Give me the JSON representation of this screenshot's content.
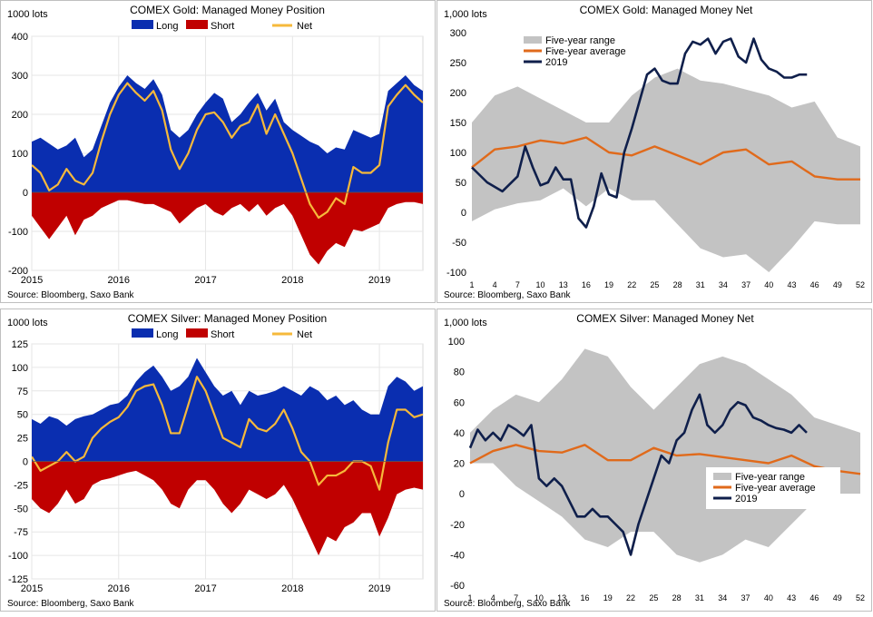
{
  "chart_data": [
    {
      "type": "area",
      "title": "COMEX Gold: Managed Money Position",
      "ylabel": "1000 lots",
      "source": "Source: Bloomberg, Saxo Bank",
      "ylim": [
        -200,
        400
      ],
      "yticks": [
        -200,
        -100,
        0,
        100,
        200,
        300,
        400
      ],
      "xlim": [
        2015.0,
        2019.5
      ],
      "xticks": [
        2015,
        2016,
        2017,
        2018,
        2019
      ],
      "grid": true,
      "legend_position": "top-center",
      "legend": [
        "Long",
        "Short",
        "Net"
      ],
      "colors": {
        "Long": "#0a2eb0",
        "Short": "#c00000",
        "Net": "#f6b93b"
      },
      "series": [
        {
          "name": "Long",
          "x": [
            2015.0,
            2015.1,
            2015.2,
            2015.3,
            2015.4,
            2015.5,
            2015.6,
            2015.7,
            2015.8,
            2015.9,
            2016.0,
            2016.1,
            2016.2,
            2016.3,
            2016.4,
            2016.5,
            2016.6,
            2016.7,
            2016.8,
            2016.9,
            2017.0,
            2017.1,
            2017.2,
            2017.3,
            2017.4,
            2017.5,
            2017.6,
            2017.7,
            2017.8,
            2017.9,
            2018.0,
            2018.1,
            2018.2,
            2018.3,
            2018.4,
            2018.5,
            2018.6,
            2018.7,
            2018.8,
            2018.9,
            2019.0,
            2019.1,
            2019.2,
            2019.3,
            2019.4,
            2019.5
          ],
          "values": [
            130,
            140,
            125,
            110,
            120,
            140,
            90,
            110,
            170,
            230,
            270,
            300,
            280,
            265,
            290,
            250,
            160,
            140,
            160,
            200,
            230,
            255,
            240,
            180,
            200,
            230,
            255,
            210,
            240,
            180,
            160,
            145,
            130,
            120,
            100,
            115,
            110,
            160,
            150,
            140,
            150,
            260,
            280,
            300,
            275,
            260
          ]
        },
        {
          "name": "Short",
          "x": [
            2015.0,
            2015.1,
            2015.2,
            2015.3,
            2015.4,
            2015.5,
            2015.6,
            2015.7,
            2015.8,
            2015.9,
            2016.0,
            2016.1,
            2016.2,
            2016.3,
            2016.4,
            2016.5,
            2016.6,
            2016.7,
            2016.8,
            2016.9,
            2017.0,
            2017.1,
            2017.2,
            2017.3,
            2017.4,
            2017.5,
            2017.6,
            2017.7,
            2017.8,
            2017.9,
            2018.0,
            2018.1,
            2018.2,
            2018.3,
            2018.4,
            2018.5,
            2018.6,
            2018.7,
            2018.8,
            2018.9,
            2019.0,
            2019.1,
            2019.2,
            2019.3,
            2019.4,
            2019.5
          ],
          "values": [
            -60,
            -90,
            -120,
            -90,
            -60,
            -110,
            -70,
            -60,
            -40,
            -30,
            -20,
            -20,
            -25,
            -30,
            -30,
            -40,
            -50,
            -80,
            -60,
            -40,
            -30,
            -50,
            -60,
            -40,
            -30,
            -50,
            -30,
            -60,
            -40,
            -30,
            -60,
            -110,
            -160,
            -185,
            -150,
            -130,
            -140,
            -95,
            -100,
            -90,
            -80,
            -40,
            -30,
            -25,
            -25,
            -30
          ]
        },
        {
          "name": "Net",
          "x": [
            2015.0,
            2015.1,
            2015.2,
            2015.3,
            2015.4,
            2015.5,
            2015.6,
            2015.7,
            2015.8,
            2015.9,
            2016.0,
            2016.1,
            2016.2,
            2016.3,
            2016.4,
            2016.5,
            2016.6,
            2016.7,
            2016.8,
            2016.9,
            2017.0,
            2017.1,
            2017.2,
            2017.3,
            2017.4,
            2017.5,
            2017.6,
            2017.7,
            2017.8,
            2017.9,
            2018.0,
            2018.1,
            2018.2,
            2018.3,
            2018.4,
            2018.5,
            2018.6,
            2018.7,
            2018.8,
            2018.9,
            2019.0,
            2019.1,
            2019.2,
            2019.3,
            2019.4,
            2019.5
          ],
          "values": [
            70,
            50,
            5,
            20,
            60,
            30,
            20,
            50,
            130,
            200,
            250,
            280,
            255,
            235,
            260,
            210,
            110,
            60,
            100,
            160,
            200,
            205,
            180,
            140,
            170,
            180,
            225,
            150,
            200,
            150,
            100,
            35,
            -30,
            -65,
            -50,
            -15,
            -30,
            65,
            50,
            50,
            70,
            220,
            250,
            275,
            250,
            230
          ]
        }
      ]
    },
    {
      "type": "line",
      "title": "COMEX Gold: Managed Money Net",
      "ylabel": "1,000 lots",
      "source": "Source: Bloomberg, Saxo Bank",
      "ylim": [
        -100,
        300
      ],
      "yticks": [
        -100,
        -50,
        0,
        50,
        100,
        150,
        200,
        250,
        300
      ],
      "xlim": [
        1,
        52
      ],
      "xticks": [
        1,
        4,
        7,
        10,
        13,
        16,
        19,
        22,
        25,
        28,
        31,
        34,
        37,
        40,
        43,
        46,
        49,
        52
      ],
      "grid": false,
      "legend_position": "top-left",
      "legend": [
        "Five-year range",
        "Five-year average",
        "2019"
      ],
      "colors": {
        "range": "#c3c3c3",
        "average": "#e06a1b",
        "y2019": "#0f1f4b"
      },
      "range": {
        "x": [
          1,
          4,
          7,
          10,
          13,
          16,
          19,
          22,
          25,
          28,
          31,
          34,
          37,
          40,
          43,
          46,
          49,
          52
        ],
        "upper": [
          150,
          195,
          210,
          190,
          170,
          150,
          150,
          195,
          225,
          240,
          220,
          215,
          205,
          195,
          175,
          185,
          125,
          110
        ],
        "lower": [
          -15,
          5,
          15,
          20,
          40,
          10,
          40,
          20,
          20,
          -20,
          -60,
          -75,
          -70,
          -100,
          -60,
          -15,
          -20,
          -20
        ]
      },
      "average": {
        "x": [
          1,
          4,
          7,
          10,
          13,
          16,
          19,
          22,
          25,
          28,
          31,
          34,
          37,
          40,
          43,
          46,
          49,
          52
        ],
        "values": [
          75,
          105,
          110,
          120,
          115,
          125,
          100,
          95,
          110,
          95,
          80,
          100,
          105,
          80,
          85,
          60,
          55,
          55
        ]
      },
      "y2019": {
        "x": [
          1,
          3,
          5,
          7,
          8,
          9,
          10,
          11,
          12,
          13,
          14,
          15,
          16,
          17,
          18,
          19,
          20,
          21,
          22,
          23,
          24,
          25,
          26,
          27,
          28,
          29,
          30,
          31,
          32,
          33,
          34,
          35,
          36,
          37,
          38,
          39,
          40,
          41,
          42,
          43,
          44,
          45
        ],
        "values": [
          75,
          50,
          35,
          60,
          110,
          75,
          45,
          50,
          75,
          55,
          55,
          -10,
          -25,
          10,
          65,
          30,
          25,
          100,
          140,
          185,
          230,
          240,
          220,
          215,
          215,
          265,
          285,
          280,
          290,
          265,
          285,
          290,
          260,
          250,
          290,
          255,
          240,
          235,
          225,
          225,
          230,
          230
        ]
      }
    },
    {
      "type": "area",
      "title": "COMEX Silver: Managed Money Position",
      "ylabel": "1000 lots",
      "source": "Source: Bloomberg, Saxo Bank",
      "ylim": [
        -125,
        125
      ],
      "yticks": [
        -125,
        -100,
        -75,
        -50,
        -25,
        0,
        25,
        50,
        75,
        100,
        125
      ],
      "xlim": [
        2015.0,
        2019.5
      ],
      "xticks": [
        2015,
        2016,
        2017,
        2018,
        2019
      ],
      "grid": true,
      "legend_position": "top-center",
      "legend": [
        "Long",
        "Short",
        "Net"
      ],
      "colors": {
        "Long": "#0a2eb0",
        "Short": "#c00000",
        "Net": "#f6b93b"
      },
      "series": [
        {
          "name": "Long",
          "x": [
            2015.0,
            2015.1,
            2015.2,
            2015.3,
            2015.4,
            2015.5,
            2015.6,
            2015.7,
            2015.8,
            2015.9,
            2016.0,
            2016.1,
            2016.2,
            2016.3,
            2016.4,
            2016.5,
            2016.6,
            2016.7,
            2016.8,
            2016.9,
            2017.0,
            2017.1,
            2017.2,
            2017.3,
            2017.4,
            2017.5,
            2017.6,
            2017.7,
            2017.8,
            2017.9,
            2018.0,
            2018.1,
            2018.2,
            2018.3,
            2018.4,
            2018.5,
            2018.6,
            2018.7,
            2018.8,
            2018.9,
            2019.0,
            2019.1,
            2019.2,
            2019.3,
            2019.4,
            2019.5
          ],
          "values": [
            45,
            40,
            48,
            45,
            38,
            45,
            48,
            50,
            55,
            60,
            62,
            70,
            85,
            95,
            102,
            90,
            75,
            80,
            90,
            110,
            95,
            80,
            70,
            75,
            60,
            75,
            70,
            72,
            75,
            80,
            75,
            70,
            80,
            75,
            65,
            70,
            60,
            65,
            55,
            50,
            50,
            80,
            90,
            85,
            75,
            80
          ]
        },
        {
          "name": "Short",
          "x": [
            2015.0,
            2015.1,
            2015.2,
            2015.3,
            2015.4,
            2015.5,
            2015.6,
            2015.7,
            2015.8,
            2015.9,
            2016.0,
            2016.1,
            2016.2,
            2016.3,
            2016.4,
            2016.5,
            2016.6,
            2016.7,
            2016.8,
            2016.9,
            2017.0,
            2017.1,
            2017.2,
            2017.3,
            2017.4,
            2017.5,
            2017.6,
            2017.7,
            2017.8,
            2017.9,
            2018.0,
            2018.1,
            2018.2,
            2018.3,
            2018.4,
            2018.5,
            2018.6,
            2018.7,
            2018.8,
            2018.9,
            2019.0,
            2019.1,
            2019.2,
            2019.3,
            2019.4,
            2019.5
          ],
          "values": [
            -40,
            -50,
            -55,
            -45,
            -30,
            -45,
            -40,
            -25,
            -20,
            -18,
            -15,
            -12,
            -10,
            -15,
            -20,
            -30,
            -45,
            -50,
            -30,
            -20,
            -20,
            -30,
            -45,
            -55,
            -45,
            -30,
            -35,
            -40,
            -35,
            -25,
            -40,
            -60,
            -80,
            -100,
            -80,
            -85,
            -70,
            -65,
            -55,
            -55,
            -80,
            -60,
            -35,
            -30,
            -28,
            -30
          ]
        },
        {
          "name": "Net",
          "x": [
            2015.0,
            2015.1,
            2015.2,
            2015.3,
            2015.4,
            2015.5,
            2015.6,
            2015.7,
            2015.8,
            2015.9,
            2016.0,
            2016.1,
            2016.2,
            2016.3,
            2016.4,
            2016.5,
            2016.6,
            2016.7,
            2016.8,
            2016.9,
            2017.0,
            2017.1,
            2017.2,
            2017.3,
            2017.4,
            2017.5,
            2017.6,
            2017.7,
            2017.8,
            2017.9,
            2018.0,
            2018.1,
            2018.2,
            2018.3,
            2018.4,
            2018.5,
            2018.6,
            2018.7,
            2018.8,
            2018.9,
            2019.0,
            2019.1,
            2019.2,
            2019.3,
            2019.4,
            2019.5
          ],
          "values": [
            5,
            -10,
            -5,
            0,
            10,
            0,
            5,
            25,
            35,
            42,
            47,
            58,
            75,
            80,
            82,
            60,
            30,
            30,
            60,
            90,
            75,
            50,
            25,
            20,
            15,
            45,
            35,
            32,
            40,
            55,
            35,
            10,
            0,
            -25,
            -15,
            -15,
            -10,
            0,
            0,
            -5,
            -30,
            20,
            55,
            55,
            47,
            50
          ]
        }
      ]
    },
    {
      "type": "line",
      "title": "COMEX Silver: Managed Money Net",
      "ylabel": "1,000 lots",
      "source": "Source: Bloomberg, Saxo Bank",
      "ylim": [
        -60,
        100
      ],
      "yticks": [
        -60,
        -40,
        -20,
        0,
        20,
        40,
        60,
        80,
        100
      ],
      "xlim": [
        1,
        52
      ],
      "xticks": [
        1,
        4,
        7,
        10,
        13,
        16,
        19,
        22,
        25,
        28,
        31,
        34,
        37,
        40,
        43,
        46,
        49,
        52
      ],
      "grid": false,
      "legend_position": "bottom-right",
      "legend": [
        "Five-year range",
        "Five-year average",
        "2019"
      ],
      "colors": {
        "range": "#c3c3c3",
        "average": "#e06a1b",
        "y2019": "#0f1f4b"
      },
      "range": {
        "x": [
          1,
          4,
          7,
          10,
          13,
          16,
          19,
          22,
          25,
          28,
          31,
          34,
          37,
          40,
          43,
          46,
          49,
          52
        ],
        "upper": [
          40,
          55,
          65,
          60,
          75,
          95,
          90,
          70,
          55,
          70,
          85,
          90,
          85,
          75,
          65,
          50,
          45,
          40
        ],
        "lower": [
          20,
          20,
          5,
          -5,
          -15,
          -30,
          -35,
          -25,
          -25,
          -40,
          -45,
          -40,
          -30,
          -35,
          -20,
          -5,
          0,
          0
        ]
      },
      "average": {
        "x": [
          1,
          4,
          7,
          10,
          13,
          16,
          19,
          22,
          25,
          28,
          31,
          34,
          37,
          40,
          43,
          46,
          49,
          52
        ],
        "values": [
          20,
          28,
          32,
          28,
          27,
          32,
          22,
          22,
          30,
          25,
          26,
          24,
          22,
          20,
          25,
          18,
          15,
          13
        ]
      },
      "y2019": {
        "x": [
          1,
          2,
          3,
          4,
          5,
          6,
          7,
          8,
          9,
          10,
          11,
          12,
          13,
          14,
          15,
          16,
          17,
          18,
          19,
          20,
          21,
          22,
          23,
          24,
          25,
          26,
          27,
          28,
          29,
          30,
          31,
          32,
          33,
          34,
          35,
          36,
          37,
          38,
          39,
          40,
          41,
          42,
          43,
          44,
          45
        ],
        "values": [
          30,
          42,
          35,
          40,
          35,
          45,
          42,
          38,
          45,
          10,
          5,
          10,
          5,
          -5,
          -15,
          -15,
          -10,
          -15,
          -15,
          -20,
          -25,
          -40,
          -20,
          -5,
          10,
          25,
          20,
          35,
          40,
          55,
          65,
          45,
          40,
          45,
          55,
          60,
          58,
          50,
          48,
          45,
          43,
          42,
          40,
          45,
          40
        ]
      }
    }
  ]
}
